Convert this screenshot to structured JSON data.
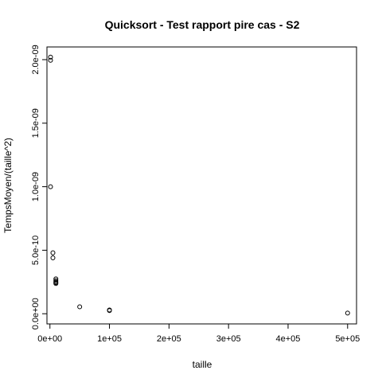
{
  "chart_data": {
    "type": "scatter",
    "title": "Quicksort - Test rapport pire cas - S2",
    "xlabel": "taille",
    "ylabel": "TempsMoyen/(taille^2)",
    "xlim": [
      -5000,
      515000
    ],
    "ylim": [
      -8e-11,
      2.1e-09
    ],
    "x_ticks": [
      0,
      100000,
      200000,
      300000,
      400000,
      500000
    ],
    "x_tick_labels": [
      "0e+00",
      "1e+05",
      "2e+05",
      "3e+05",
      "4e+05",
      "5e+05"
    ],
    "y_ticks": [
      0,
      5e-10,
      1e-09,
      1.5e-09,
      2e-09
    ],
    "y_tick_labels": [
      "0.0e+00",
      "5.0e-10",
      "1.0e-09",
      "1.5e-09",
      "2.0e-09"
    ],
    "grid": false,
    "marker": "open-circle",
    "points": [
      {
        "x": 1000,
        "y": 2.02e-09
      },
      {
        "x": 1000,
        "y": 1.995e-09
      },
      {
        "x": 1000,
        "y": 1e-09
      },
      {
        "x": 5000,
        "y": 4.8e-10
      },
      {
        "x": 5000,
        "y": 4.4e-10
      },
      {
        "x": 10000,
        "y": 2.75e-10
      },
      {
        "x": 10000,
        "y": 2.62e-10
      },
      {
        "x": 10000,
        "y": 2.52e-10
      },
      {
        "x": 10000,
        "y": 2.45e-10
      },
      {
        "x": 10000,
        "y": 2.38e-10
      },
      {
        "x": 50000,
        "y": 5.5e-11
      },
      {
        "x": 100000,
        "y": 3e-11
      },
      {
        "x": 100000,
        "y": 2.5e-11
      },
      {
        "x": 500000,
        "y": 5e-12
      }
    ]
  }
}
